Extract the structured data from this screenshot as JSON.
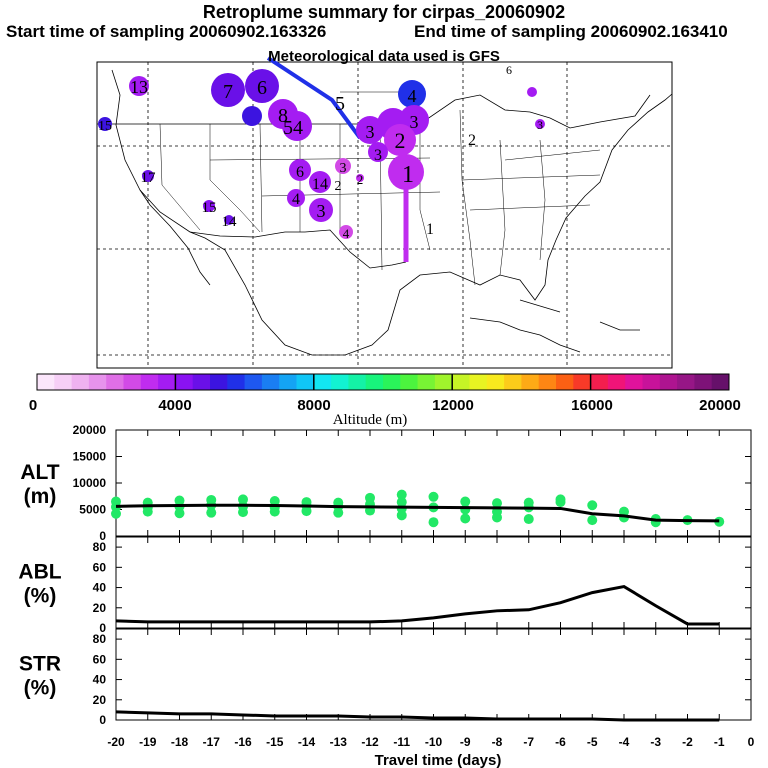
{
  "header": {
    "title": "Retroplume summary for cirpas_20060902",
    "start_sampling": "Start time of sampling 20060902.163326",
    "end_sampling": "End time of sampling 20060902.163410",
    "met_data": "Meteorological data used is GFS"
  },
  "colorbar": {
    "tick_labels": [
      "0",
      "4000",
      "8000",
      "12000",
      "16000",
      "20000"
    ],
    "label": "Altitude (m)",
    "min": 0,
    "max": 20000,
    "colors": [
      "#fbe6fb",
      "#f6cff6",
      "#efb2f0",
      "#e793ec",
      "#df6fe6",
      "#d24ae6",
      "#c02cef",
      "#a41cf2",
      "#8a12f2",
      "#6a10e8",
      "#3c14e0",
      "#2030e8",
      "#1e58f0",
      "#1a7ef2",
      "#14a4f4",
      "#10c6f6",
      "#12e6f2",
      "#12f2d2",
      "#14f2a6",
      "#18f47c",
      "#2af45a",
      "#4cf43e",
      "#78f434",
      "#a0f42c",
      "#c6f426",
      "#e8f422",
      "#f8ea1e",
      "#fccc1a",
      "#feaa16",
      "#fe8614",
      "#fc6014",
      "#f83a28",
      "#f41e4e",
      "#f01478",
      "#e0129c",
      "#c8129a",
      "#ae1490",
      "#961686",
      "#7e1278",
      "#66106a"
    ]
  },
  "map": {
    "plume_numbers": [
      {
        "label": "1",
        "color": "#c02cef"
      },
      {
        "label": "2",
        "color": "#c02cef"
      },
      {
        "label": "3",
        "color": "#a41cf2"
      },
      {
        "label": "4",
        "color": "#3c14e0"
      },
      {
        "label": "5",
        "color": "#8a12f2"
      },
      {
        "label": "6",
        "color": "#6a10e8"
      },
      {
        "label": "7",
        "color": "#6a10e8"
      },
      {
        "label": "8",
        "color": "#a41cf2"
      },
      {
        "label": "13",
        "color": "#a41cf2"
      },
      {
        "label": "14",
        "color": "#6a10e8"
      },
      {
        "label": "15",
        "color": "#8a12f2"
      },
      {
        "label": "17",
        "color": "#6a10e8"
      },
      {
        "label": "18",
        "color": "#3c14e0"
      },
      {
        "label": "54",
        "color": "#a41cf2"
      }
    ]
  },
  "chart_data": [
    {
      "type": "line",
      "panel": "ALT",
      "ylabel": "ALT (m)",
      "ylabel_lines": [
        "ALT",
        "(m)"
      ],
      "xlim": [
        -20,
        0
      ],
      "ylim": [
        0,
        20000
      ],
      "yticks": [
        "0",
        "5000",
        "10000",
        "15000",
        "20000"
      ],
      "x": [
        -20,
        -19,
        -18,
        -17,
        -16,
        -15,
        -14,
        -13,
        -12,
        -11,
        -10,
        -9,
        -8,
        -7,
        -6,
        -5,
        -4,
        -3,
        -2,
        -1
      ],
      "values": [
        5600,
        5700,
        5750,
        5800,
        5800,
        5750,
        5650,
        5550,
        5500,
        5450,
        5400,
        5350,
        5300,
        5250,
        5200,
        4200,
        3800,
        3000,
        2900,
        2850
      ],
      "scatter_color": "#22e866",
      "scatter_points": [
        [
          -20,
          6500
        ],
        [
          -20,
          5500
        ],
        [
          -20,
          4200
        ],
        [
          -19,
          6300
        ],
        [
          -19,
          5400
        ],
        [
          -19,
          4600
        ],
        [
          -18,
          6700
        ],
        [
          -18,
          5600
        ],
        [
          -18,
          4300
        ],
        [
          -17,
          6800
        ],
        [
          -17,
          5800
        ],
        [
          -17,
          4400
        ],
        [
          -16,
          6900
        ],
        [
          -16,
          5600
        ],
        [
          -16,
          4500
        ],
        [
          -15,
          6600
        ],
        [
          -15,
          5400
        ],
        [
          -15,
          4600
        ],
        [
          -14,
          6400
        ],
        [
          -14,
          5700
        ],
        [
          -14,
          4700
        ],
        [
          -13,
          6300
        ],
        [
          -13,
          5600
        ],
        [
          -13,
          4400
        ],
        [
          -12,
          7200
        ],
        [
          -12,
          6000
        ],
        [
          -12,
          4800
        ],
        [
          -11,
          7800
        ],
        [
          -11,
          6400
        ],
        [
          -11,
          5200
        ],
        [
          -11,
          3900
        ],
        [
          -10,
          7400
        ],
        [
          -10,
          5400
        ],
        [
          -10,
          2600
        ],
        [
          -9,
          6500
        ],
        [
          -9,
          5000
        ],
        [
          -9,
          3300
        ],
        [
          -8,
          6200
        ],
        [
          -8,
          4600
        ],
        [
          -8,
          3500
        ],
        [
          -7,
          6300
        ],
        [
          -7,
          5400
        ],
        [
          -7,
          3200
        ],
        [
          -6,
          6900
        ],
        [
          -6,
          6400
        ],
        [
          -5,
          5800
        ],
        [
          -5,
          3000
        ],
        [
          -4,
          4600
        ],
        [
          -4,
          3500
        ],
        [
          -3,
          3200
        ],
        [
          -3,
          2600
        ],
        [
          -2,
          3000
        ],
        [
          -1,
          2700
        ]
      ]
    },
    {
      "type": "line",
      "panel": "ABL",
      "ylabel": "ABL (%)",
      "ylabel_lines": [
        "ABL",
        "(%)"
      ],
      "xlim": [
        -20,
        0
      ],
      "ylim": [
        0,
        90
      ],
      "yticks": [
        "0",
        "20",
        "40",
        "60",
        "80"
      ],
      "x": [
        -20,
        -19,
        -18,
        -17,
        -16,
        -15,
        -14,
        -13,
        -12,
        -11,
        -10,
        -9,
        -8,
        -7,
        -6,
        -5,
        -4,
        -3,
        -2,
        -1
      ],
      "values": [
        7,
        6,
        6,
        6,
        6,
        6,
        6,
        6,
        6,
        7,
        10,
        14,
        17,
        18,
        25,
        35,
        41,
        22,
        4,
        4
      ]
    },
    {
      "type": "line",
      "panel": "STR",
      "ylabel": "STR (%)",
      "ylabel_lines": [
        "STR",
        "(%)"
      ],
      "xlim": [
        -20,
        0
      ],
      "ylim": [
        0,
        90
      ],
      "yticks": [
        "0",
        "20",
        "40",
        "60",
        "80"
      ],
      "x": [
        -20,
        -19,
        -18,
        -17,
        -16,
        -15,
        -14,
        -13,
        -12,
        -11,
        -10,
        -9,
        -8,
        -7,
        -6,
        -5,
        -4,
        -3,
        -2,
        -1
      ],
      "values": [
        8,
        7,
        6,
        6,
        5,
        4,
        4,
        4,
        3,
        3,
        2,
        2,
        1,
        1,
        1,
        1,
        0,
        0,
        0,
        0
      ]
    }
  ],
  "xaxis": {
    "tick_labels": [
      "-20",
      "-19",
      "-18",
      "-17",
      "-16",
      "-15",
      "-14",
      "-13",
      "-12",
      "-11",
      "-10",
      "-9",
      "-8",
      "-7",
      "-6",
      "-5",
      "-4",
      "-3",
      "-2",
      "-1",
      "0"
    ],
    "label": "Travel time (days)"
  }
}
